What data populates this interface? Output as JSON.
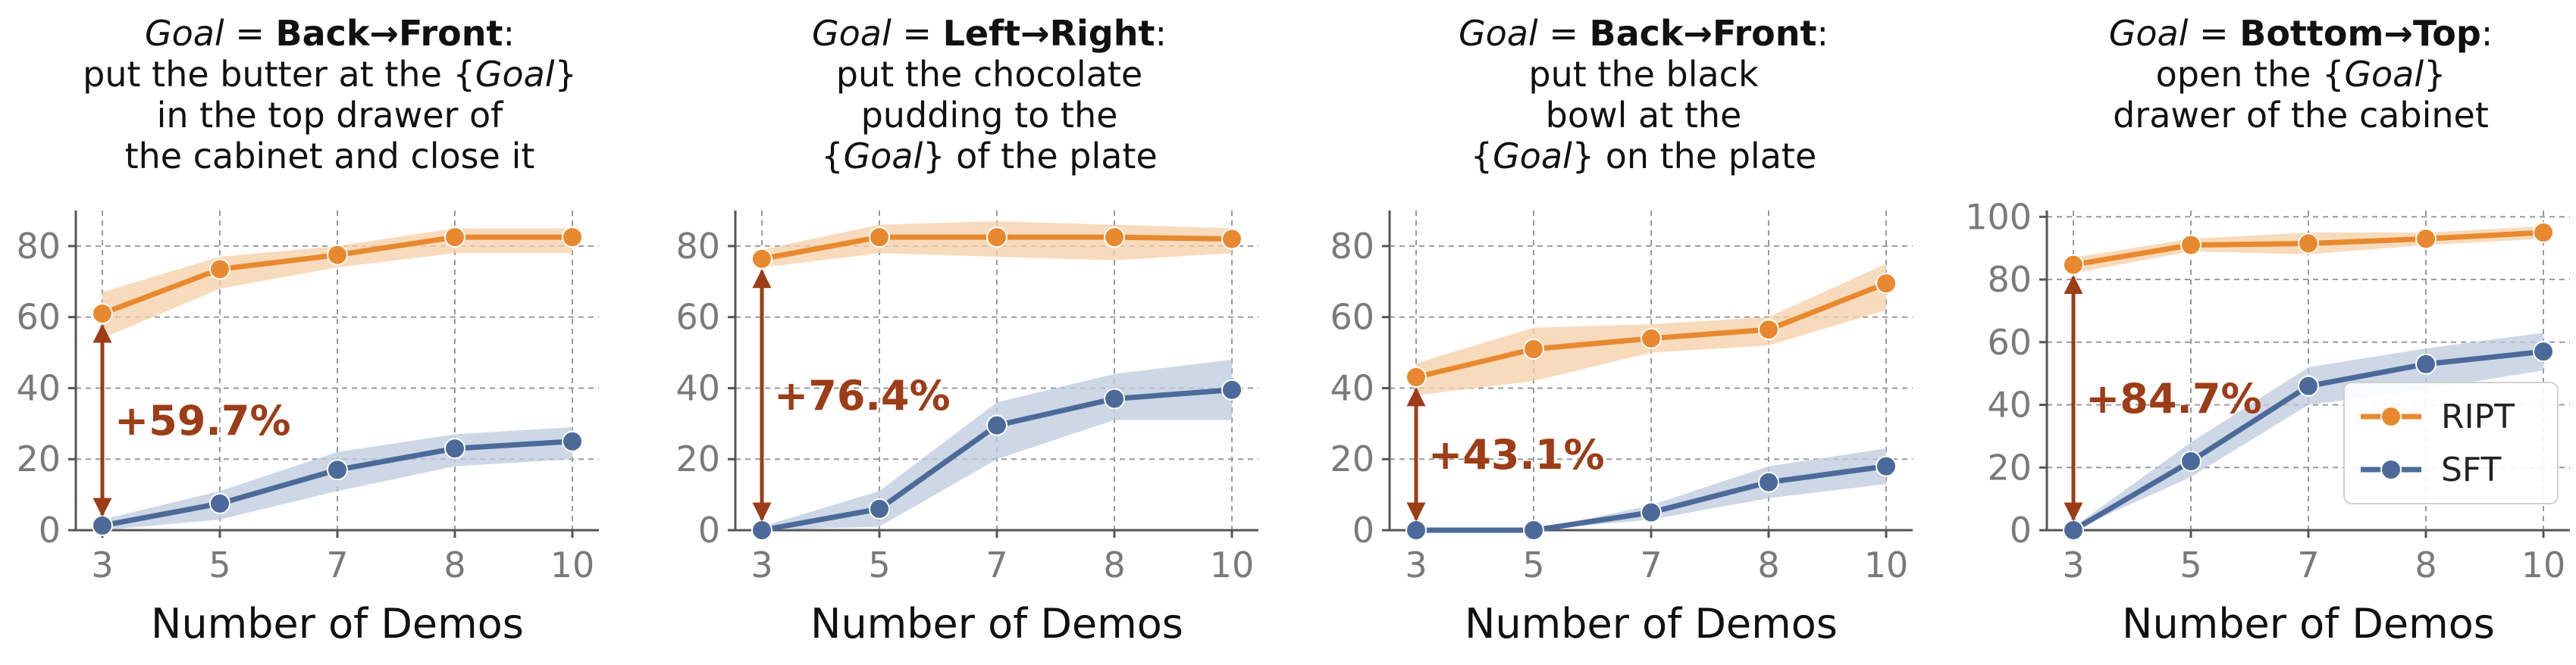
{
  "colors": {
    "ript": "#E8892F",
    "ript_band": "#F5CFA6",
    "sft": "#4C6A99",
    "sft_band": "#BCC9DE",
    "arrow": "#9C3D17",
    "grid": "#9a9a9a",
    "axis": "#555555",
    "tick_label": "#7a7a7a"
  },
  "legend": {
    "location": "lower-right of fourth panel",
    "entries": [
      "RIPT",
      "SFT"
    ]
  },
  "chart_data": [
    {
      "type": "line",
      "title": {
        "goal_word": "Goal",
        "equals": " = ",
        "direction": "Back→Front",
        "colon": ":",
        "lines": [
          "put the butter at the {Goal}",
          "in the top drawer of",
          "the cabinet and close it"
        ]
      },
      "xlabel": "Number of Demos",
      "ylabel": "",
      "categories": [
        "3",
        "5",
        "7",
        "8",
        "10"
      ],
      "ylim": [
        0,
        90
      ],
      "yticks": [
        0,
        20,
        40,
        60,
        80
      ],
      "grid": true,
      "series": [
        {
          "name": "RIPT",
          "values": [
            61.0,
            73.5,
            77.5,
            82.5,
            82.5
          ],
          "lower": [
            54,
            68,
            74,
            78,
            78
          ],
          "upper": [
            67,
            77,
            80,
            85,
            85
          ]
        },
        {
          "name": "SFT",
          "values": [
            1.3,
            7.5,
            17.0,
            23.0,
            25.0
          ],
          "lower": [
            0,
            3,
            11,
            18,
            20
          ],
          "upper": [
            3,
            11,
            22,
            27,
            29
          ]
        }
      ],
      "annotation": {
        "text": "+59.7%",
        "from": 1.3,
        "to": 61.0
      }
    },
    {
      "type": "line",
      "title": {
        "goal_word": "Goal",
        "equals": " = ",
        "direction": "Left→Right",
        "colon": ":",
        "lines": [
          "put the chocolate",
          "pudding to the",
          "{Goal} of the plate"
        ]
      },
      "xlabel": "Number of Demos",
      "ylabel": "",
      "categories": [
        "3",
        "5",
        "7",
        "8",
        "10"
      ],
      "ylim": [
        0,
        90
      ],
      "yticks": [
        0,
        20,
        40,
        60,
        80
      ],
      "grid": true,
      "series": [
        {
          "name": "RIPT",
          "values": [
            76.4,
            82.5,
            82.5,
            82.5,
            82.0
          ],
          "lower": [
            74,
            78,
            77,
            76,
            78
          ],
          "upper": [
            79,
            86,
            87,
            86,
            85
          ]
        },
        {
          "name": "SFT",
          "values": [
            0.0,
            6.0,
            29.5,
            37.0,
            39.5
          ],
          "lower": [
            0,
            1,
            20,
            31,
            31
          ],
          "upper": [
            1,
            11,
            36,
            44,
            48
          ]
        }
      ],
      "annotation": {
        "text": "+76.4%",
        "from": 0.0,
        "to": 76.4
      }
    },
    {
      "type": "line",
      "title": {
        "goal_word": "Goal",
        "equals": " = ",
        "direction": "Back→Front",
        "colon": ":",
        "lines": [
          "put the black",
          "bowl at the",
          "{Goal} on the plate"
        ]
      },
      "xlabel": "Number of Demos",
      "ylabel": "",
      "categories": [
        "3",
        "5",
        "7",
        "8",
        "10"
      ],
      "ylim": [
        0,
        90
      ],
      "yticks": [
        0,
        20,
        40,
        60,
        80
      ],
      "grid": true,
      "series": [
        {
          "name": "RIPT",
          "values": [
            43.1,
            51.0,
            54.0,
            56.5,
            69.5
          ],
          "lower": [
            38,
            42,
            50,
            52,
            62
          ],
          "upper": [
            47,
            57,
            58,
            60,
            75
          ]
        },
        {
          "name": "SFT",
          "values": [
            0.0,
            0.0,
            5.0,
            13.5,
            18.0
          ],
          "lower": [
            0,
            0,
            3,
            9,
            13
          ],
          "upper": [
            0,
            0,
            7,
            18,
            23
          ]
        }
      ],
      "annotation": {
        "text": "+43.1%",
        "from": 0.0,
        "to": 43.1
      }
    },
    {
      "type": "line",
      "title": {
        "goal_word": "Goal",
        "equals": " = ",
        "direction": "Bottom→Top",
        "colon": ":",
        "lines": [
          "open the {Goal}",
          "drawer of the cabinet"
        ]
      },
      "xlabel": "Number of Demos",
      "ylabel": "",
      "categories": [
        "3",
        "5",
        "7",
        "8",
        "10"
      ],
      "ylim": [
        0,
        102
      ],
      "yticks": [
        0,
        20,
        40,
        60,
        80,
        100
      ],
      "grid": true,
      "series": [
        {
          "name": "RIPT",
          "values": [
            84.7,
            91.0,
            91.5,
            93.0,
            95.0
          ],
          "lower": [
            82,
            89,
            88,
            91,
            93
          ],
          "upper": [
            87,
            93,
            95,
            95,
            97
          ]
        },
        {
          "name": "SFT",
          "values": [
            0.0,
            22.0,
            46.0,
            53.0,
            57.0
          ],
          "lower": [
            0,
            17,
            40,
            45,
            51
          ],
          "upper": [
            1,
            28,
            52,
            58,
            63
          ]
        }
      ],
      "annotation": {
        "text": "+84.7%",
        "from": 0.0,
        "to": 84.7
      }
    }
  ]
}
